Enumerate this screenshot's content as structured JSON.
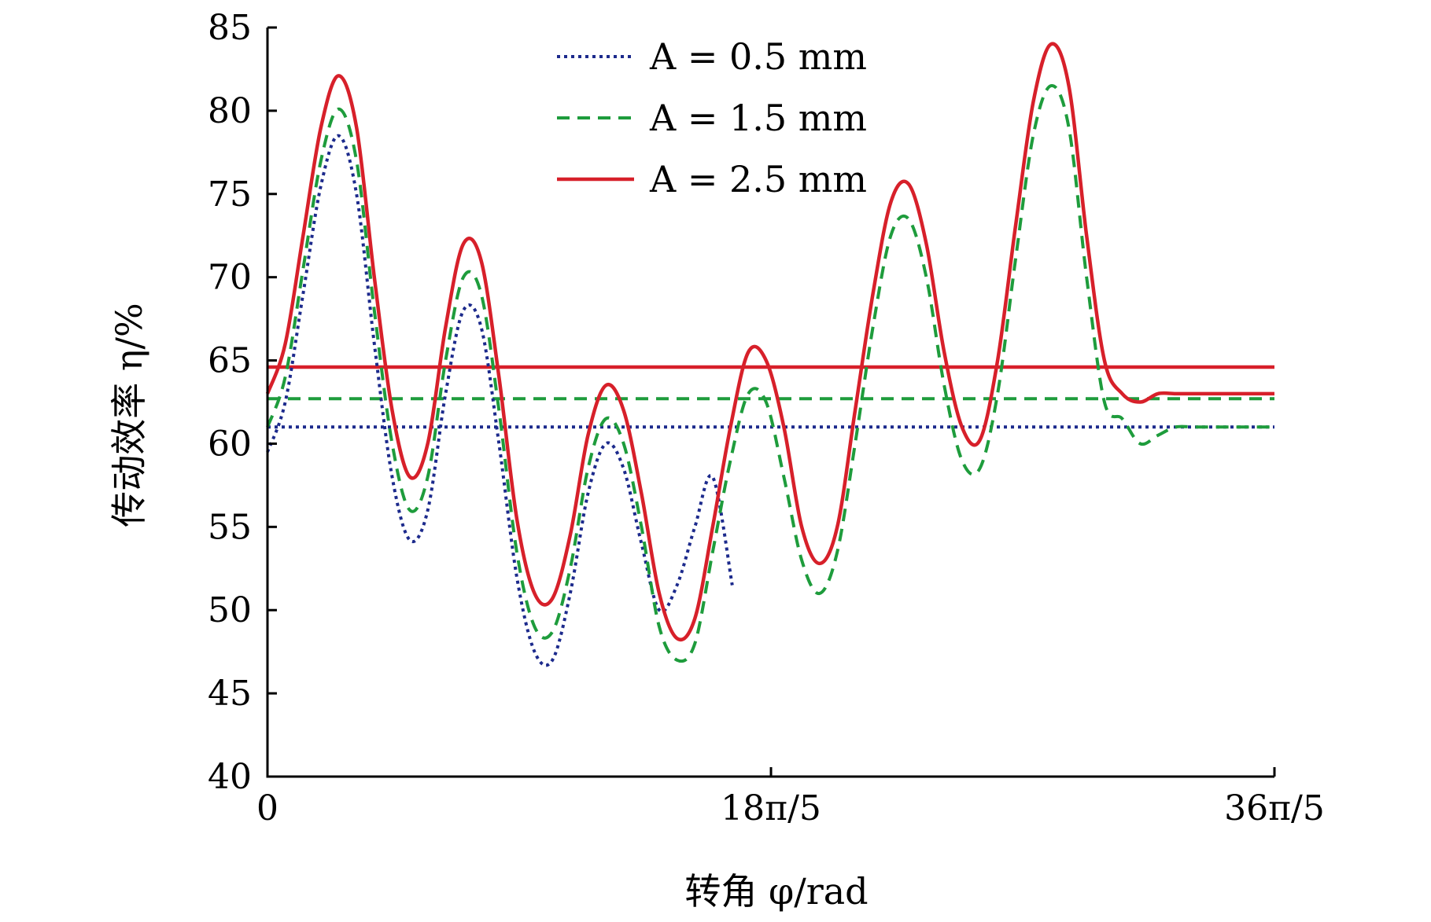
{
  "chart_data": {
    "type": "line",
    "title": "",
    "xlabel": "转角 φ/rad",
    "ylabel": "传动效率 η/%",
    "xlim": [
      0,
      22.619
    ],
    "ylim": [
      40,
      85
    ],
    "y_ticks": [
      40,
      45,
      50,
      55,
      60,
      65,
      70,
      75,
      80,
      85
    ],
    "x_ticks": [
      {
        "value": 0,
        "label": "0"
      },
      {
        "value": 11.31,
        "label": "18π/5"
      },
      {
        "value": 22.619,
        "label": "36π/5"
      }
    ],
    "grid": false,
    "legend_position": "top-center",
    "series": [
      {
        "name": "A = 0.5 mm",
        "line_style": "dotted",
        "color": "#1c2a8c",
        "x": [
          0.0,
          0.4,
          0.8,
          1.2,
          1.6,
          2.0,
          2.4,
          2.8,
          3.2,
          3.6,
          4.0,
          4.4,
          4.8,
          5.2,
          5.6,
          6.0,
          6.4,
          6.8,
          7.2,
          7.6,
          8.0,
          8.4,
          8.8,
          9.2,
          9.6,
          10.0,
          10.44
        ],
        "y": [
          59.5,
          62.5,
          69.0,
          75.5,
          78.5,
          75.0,
          66.0,
          58.0,
          54.2,
          56.0,
          63.0,
          68.0,
          67.0,
          60.0,
          52.0,
          47.5,
          47.0,
          51.0,
          57.0,
          60.0,
          58.5,
          54.0,
          50.0,
          51.5,
          55.0,
          58.0,
          51.5
        ]
      },
      {
        "name": "A = 1.5 mm",
        "line_style": "dashed",
        "color": "#1e9c3c",
        "x": [
          0.0,
          0.4,
          0.8,
          1.2,
          1.6,
          2.0,
          2.4,
          2.8,
          3.2,
          3.6,
          4.0,
          4.4,
          4.8,
          5.2,
          5.6,
          6.0,
          6.4,
          6.8,
          7.2,
          7.6,
          8.0,
          8.4,
          8.8,
          9.2,
          9.6,
          10.0,
          10.4,
          10.8,
          11.2,
          11.6,
          12.0,
          12.4,
          12.8,
          13.2,
          13.6,
          14.0,
          14.4,
          14.8,
          15.2,
          15.6,
          16.0,
          16.4,
          16.8,
          17.2,
          17.6,
          18.0,
          18.4,
          18.8,
          19.2,
          19.6,
          20.0,
          20.4,
          20.8,
          21.2,
          21.6,
          22.0,
          22.4,
          22.619
        ],
        "y": [
          61.0,
          64.0,
          70.5,
          77.0,
          80.1,
          77.0,
          68.0,
          60.0,
          56.0,
          58.0,
          65.0,
          70.0,
          69.0,
          62.0,
          53.5,
          49.0,
          48.7,
          52.5,
          58.5,
          61.5,
          60.0,
          55.0,
          49.0,
          47.0,
          48.0,
          53.5,
          59.0,
          63.0,
          62.5,
          58.0,
          53.0,
          51.0,
          53.5,
          60.0,
          67.0,
          72.5,
          73.5,
          70.0,
          63.5,
          59.0,
          58.5,
          63.0,
          71.0,
          78.5,
          81.5,
          79.0,
          70.0,
          62.5,
          61.5,
          60.0,
          60.5,
          61.0,
          61.0,
          61.0,
          61.0,
          61.0,
          61.0,
          61.0
        ]
      },
      {
        "name": "A = 2.5 mm",
        "line_style": "solid",
        "color": "#d7202a",
        "x": [
          0.0,
          0.4,
          0.8,
          1.2,
          1.6,
          2.0,
          2.4,
          2.8,
          3.2,
          3.6,
          4.0,
          4.4,
          4.8,
          5.2,
          5.6,
          6.0,
          6.4,
          6.8,
          7.2,
          7.6,
          8.0,
          8.4,
          8.8,
          9.2,
          9.6,
          10.0,
          10.4,
          10.8,
          11.2,
          11.6,
          12.0,
          12.4,
          12.8,
          13.2,
          13.6,
          14.0,
          14.4,
          14.8,
          15.2,
          15.6,
          16.0,
          16.4,
          16.8,
          17.2,
          17.6,
          18.0,
          18.4,
          18.8,
          19.2,
          19.6,
          20.0,
          20.4,
          20.8,
          21.2,
          21.6,
          22.0,
          22.4,
          22.619
        ],
        "y": [
          63.0,
          66.0,
          72.5,
          79.0,
          82.1,
          79.0,
          70.0,
          62.0,
          58.0,
          60.0,
          67.0,
          72.0,
          71.0,
          64.0,
          55.5,
          51.0,
          50.7,
          54.5,
          60.5,
          63.5,
          62.0,
          57.0,
          51.0,
          48.3,
          49.5,
          55.0,
          61.0,
          65.5,
          65.0,
          61.0,
          55.0,
          52.8,
          55.0,
          62.0,
          69.0,
          74.5,
          75.6,
          72.0,
          65.5,
          61.0,
          60.2,
          65.0,
          73.0,
          80.5,
          84.0,
          81.5,
          72.5,
          65.0,
          63.0,
          62.5,
          63.0,
          63.0,
          63.0,
          63.0,
          63.0,
          63.0,
          63.0,
          63.0
        ]
      }
    ],
    "reference_lines": [
      {
        "series": "A = 0.5 mm",
        "y": 61.0,
        "line_style": "dotted",
        "color": "#1c2a8c"
      },
      {
        "series": "A = 1.5 mm",
        "y": 62.7,
        "line_style": "dashed",
        "color": "#1e9c3c"
      },
      {
        "series": "A = 2.5 mm",
        "y": 64.6,
        "line_style": "solid",
        "color": "#d7202a"
      }
    ]
  }
}
